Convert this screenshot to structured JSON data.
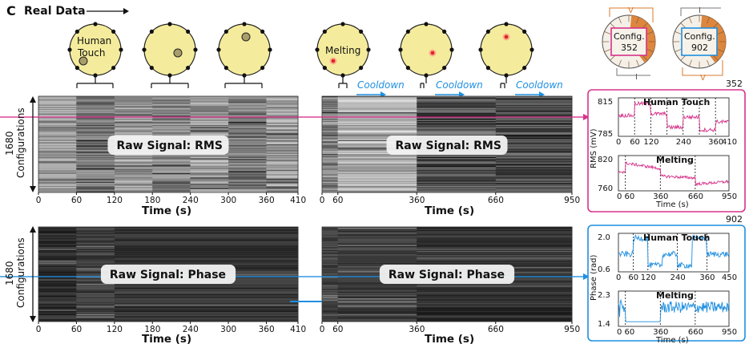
{
  "panel": {
    "letter": "C",
    "title": "Real Data"
  },
  "circles": {
    "human_touch_label": [
      "Human",
      "Touch"
    ],
    "melting_label": "Melting",
    "config_a": [
      "Config.",
      "352"
    ],
    "config_b": [
      "Config.",
      "902"
    ],
    "config_letters": {
      "v": "V",
      "i": "I"
    }
  },
  "cooldown_label": "Cooldown",
  "heatmaps": {
    "rms_label": "Raw Signal: RMS",
    "phase_label": "Raw Signal: Phase",
    "ylabel_count": "1680",
    "ylabel_text": "Configurations",
    "xlabel": "Time (s)",
    "left_ticks": [
      "0",
      "60",
      "120",
      "180",
      "240",
      "300",
      "360",
      "410"
    ],
    "right_ticks": [
      "0",
      "60",
      "360",
      "660",
      "950"
    ]
  },
  "insets": {
    "rms": {
      "config_number": "352",
      "ylabel": "RMS (mV)",
      "top_title": "Human Touch",
      "top_yticks": [
        "815",
        "785"
      ],
      "top_xticks": [
        "0",
        "60",
        "120",
        "240",
        "360",
        "410"
      ],
      "bottom_title": "Melting",
      "bottom_yticks": [
        "820",
        "760"
      ],
      "bottom_xticks": [
        "0 60",
        "360",
        "660",
        "950"
      ],
      "xlabel": "Time (s)",
      "color": "#d6338a"
    },
    "phase": {
      "config_number": "902",
      "ylabel": "Phase (rad)",
      "top_title": "Human Touch",
      "top_yticks": [
        "2.0",
        "0.6"
      ],
      "top_xticks": [
        "0",
        "60",
        "120",
        "240",
        "360",
        "450"
      ],
      "bottom_title": "Melting",
      "bottom_yticks": [
        "2.3",
        "1.4"
      ],
      "bottom_xticks": [
        "0 60",
        "360",
        "660",
        "950"
      ],
      "xlabel": "Time (s)",
      "color": "#1f8fe0"
    }
  }
}
